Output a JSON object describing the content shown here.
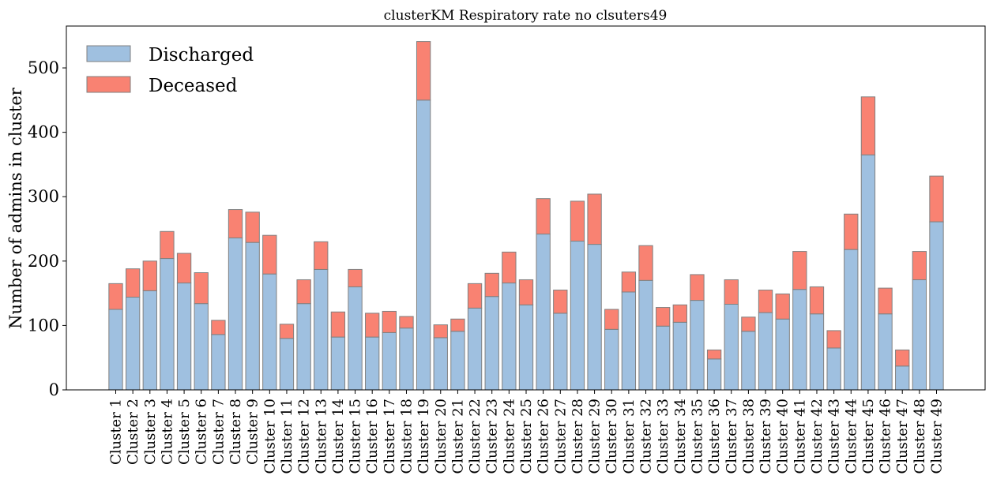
{
  "chart_data": {
    "type": "bar",
    "stacked": true,
    "title": "clusterKM Respiratory rate no clsuters49",
    "xlabel": "",
    "ylabel": "Number of admins in cluster",
    "ylim": [
      0,
      565
    ],
    "yticks": [
      0,
      100,
      200,
      300,
      400,
      500
    ],
    "grid": false,
    "legend_position": "top-left",
    "categories": [
      "Cluster 1",
      "Cluster 2",
      "Cluster 3",
      "Cluster 4",
      "Cluster 5",
      "Cluster 6",
      "Cluster 7",
      "Cluster 8",
      "Cluster 9",
      "Cluster 10",
      "Cluster 11",
      "Cluster 12",
      "Cluster 13",
      "Cluster 14",
      "Cluster 15",
      "Cluster 16",
      "Cluster 17",
      "Cluster 18",
      "Cluster 19",
      "Cluster 20",
      "Cluster 21",
      "Cluster 22",
      "Cluster 23",
      "Cluster 24",
      "Cluster 25",
      "Cluster 26",
      "Cluster 27",
      "Cluster 28",
      "Cluster 29",
      "Cluster 30",
      "Cluster 31",
      "Cluster 32",
      "Cluster 33",
      "Cluster 34",
      "Cluster 35",
      "Cluster 36",
      "Cluster 37",
      "Cluster 38",
      "Cluster 39",
      "Cluster 40",
      "Cluster 41",
      "Cluster 42",
      "Cluster 43",
      "Cluster 44",
      "Cluster 45",
      "Cluster 46",
      "Cluster 47",
      "Cluster 48",
      "Cluster 49"
    ],
    "series": [
      {
        "name": "Discharged",
        "color": "#9fc0e0",
        "values": [
          125,
          144,
          154,
          204,
          166,
          134,
          86,
          236,
          229,
          180,
          80,
          134,
          187,
          82,
          160,
          82,
          89,
          96,
          450,
          81,
          91,
          127,
          145,
          166,
          132,
          242,
          119,
          231,
          226,
          94,
          152,
          170,
          99,
          105,
          139,
          48,
          133,
          91,
          120,
          110,
          156,
          118,
          65,
          218,
          365,
          118,
          37,
          171,
          261
        ]
      },
      {
        "name": "Deceased",
        "color": "#f98272",
        "values": [
          40,
          44,
          46,
          42,
          46,
          48,
          22,
          44,
          47,
          60,
          22,
          37,
          43,
          39,
          27,
          37,
          33,
          18,
          91,
          20,
          19,
          38,
          36,
          48,
          39,
          55,
          36,
          62,
          78,
          31,
          31,
          54,
          29,
          27,
          40,
          14,
          38,
          22,
          35,
          39,
          59,
          42,
          27,
          55,
          90,
          40,
          25,
          44,
          71
        ]
      }
    ]
  }
}
